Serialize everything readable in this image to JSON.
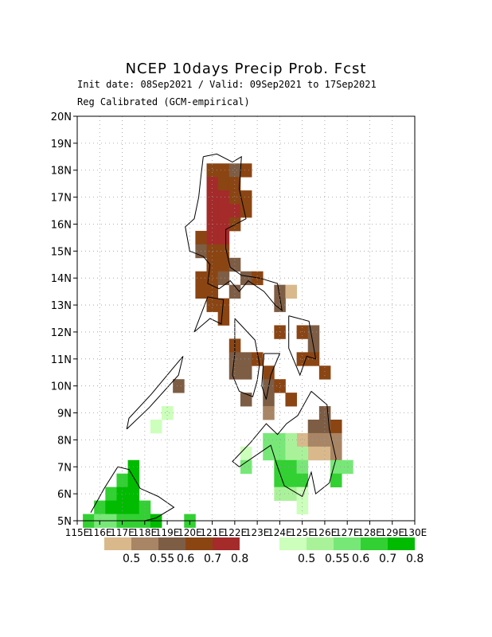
{
  "title": "NCEP 10days Precip Prob. Fcst",
  "subtitle1": "Init date: 08Sep2021 / Valid: 09Sep2021 to 17Sep2021",
  "subtitle2": "Reg Calibrated (GCM-empirical)",
  "lat_ticks": [
    "20N",
    "19N",
    "18N",
    "17N",
    "16N",
    "15N",
    "14N",
    "13N",
    "12N",
    "11N",
    "10N",
    "9N",
    "8N",
    "7N",
    "6N",
    "5N"
  ],
  "lon_ticks": [
    "115E",
    "116E",
    "117E",
    "118E",
    "119E",
    "120E",
    "121E",
    "122E",
    "123E",
    "124E",
    "125E",
    "126E",
    "127E",
    "128E",
    "129E",
    "130E"
  ],
  "extent": {
    "lon": [
      115,
      130
    ],
    "lat": [
      5,
      20
    ]
  },
  "grid": "dotted",
  "dry_legend": {
    "colors": [
      "#d9b98c",
      "#a88565",
      "#7e5d45",
      "#8b4513",
      "#a52a2a"
    ],
    "labels": [
      "0.5",
      "0.55",
      "0.6",
      "0.7",
      "0.8"
    ]
  },
  "wet_legend": {
    "colors": [
      "#ccffbb",
      "#aaf29a",
      "#77e877",
      "#33d033",
      "#00bb00"
    ],
    "labels": [
      "0.5",
      "0.55",
      "0.6",
      "0.7",
      "0.8"
    ]
  },
  "dry_cells": [
    {
      "lon": 121.0,
      "lat": 18.0,
      "c": 3
    },
    {
      "lon": 121.5,
      "lat": 18.0,
      "c": 3
    },
    {
      "lon": 122.0,
      "lat": 18.0,
      "c": 2
    },
    {
      "lon": 122.5,
      "lat": 18.0,
      "c": 3
    },
    {
      "lon": 121.0,
      "lat": 17.5,
      "c": 4
    },
    {
      "lon": 121.5,
      "lat": 17.5,
      "c": 3
    },
    {
      "lon": 122.0,
      "lat": 17.5,
      "c": 3
    },
    {
      "lon": 121.0,
      "lat": 17.0,
      "c": 4
    },
    {
      "lon": 121.5,
      "lat": 17.0,
      "c": 4
    },
    {
      "lon": 122.0,
      "lat": 17.0,
      "c": 3
    },
    {
      "lon": 122.5,
      "lat": 17.0,
      "c": 3
    },
    {
      "lon": 121.0,
      "lat": 16.5,
      "c": 4
    },
    {
      "lon": 121.5,
      "lat": 16.5,
      "c": 4
    },
    {
      "lon": 122.0,
      "lat": 16.5,
      "c": 4
    },
    {
      "lon": 122.5,
      "lat": 16.5,
      "c": 3
    },
    {
      "lon": 121.0,
      "lat": 16.0,
      "c": 4
    },
    {
      "lon": 121.5,
      "lat": 16.0,
      "c": 4
    },
    {
      "lon": 122.0,
      "lat": 16.0,
      "c": 3
    },
    {
      "lon": 120.5,
      "lat": 15.5,
      "c": 3
    },
    {
      "lon": 121.0,
      "lat": 15.5,
      "c": 4
    },
    {
      "lon": 121.5,
      "lat": 15.5,
      "c": 4
    },
    {
      "lon": 120.5,
      "lat": 15.0,
      "c": 2
    },
    {
      "lon": 121.0,
      "lat": 15.0,
      "c": 3
    },
    {
      "lon": 121.5,
      "lat": 15.0,
      "c": 3
    },
    {
      "lon": 121.0,
      "lat": 14.5,
      "c": 3
    },
    {
      "lon": 121.5,
      "lat": 14.5,
      "c": 3
    },
    {
      "lon": 122.0,
      "lat": 14.5,
      "c": 2
    },
    {
      "lon": 120.5,
      "lat": 14.0,
      "c": 3
    },
    {
      "lon": 121.0,
      "lat": 14.0,
      "c": 3
    },
    {
      "lon": 121.5,
      "lat": 14.0,
      "c": 2
    },
    {
      "lon": 122.5,
      "lat": 14.0,
      "c": 2
    },
    {
      "lon": 123.0,
      "lat": 14.0,
      "c": 3
    },
    {
      "lon": 120.5,
      "lat": 13.5,
      "c": 3
    },
    {
      "lon": 121.0,
      "lat": 13.5,
      "c": 3
    },
    {
      "lon": 122.0,
      "lat": 13.5,
      "c": 2
    },
    {
      "lon": 124.0,
      "lat": 13.5,
      "c": 2
    },
    {
      "lon": 124.5,
      "lat": 13.5,
      "c": 0
    },
    {
      "lon": 121.0,
      "lat": 13.0,
      "c": 3
    },
    {
      "lon": 121.5,
      "lat": 13.0,
      "c": 3
    },
    {
      "lon": 124.0,
      "lat": 13.0,
      "c": 2
    },
    {
      "lon": 121.5,
      "lat": 12.5,
      "c": 3
    },
    {
      "lon": 124.0,
      "lat": 12.0,
      "c": 3
    },
    {
      "lon": 125.0,
      "lat": 12.0,
      "c": 3
    },
    {
      "lon": 125.5,
      "lat": 12.0,
      "c": 2
    },
    {
      "lon": 122.0,
      "lat": 11.5,
      "c": 3
    },
    {
      "lon": 125.5,
      "lat": 11.5,
      "c": 2
    },
    {
      "lon": 122.0,
      "lat": 11.0,
      "c": 2
    },
    {
      "lon": 122.5,
      "lat": 11.0,
      "c": 2
    },
    {
      "lon": 123.0,
      "lat": 11.0,
      "c": 3
    },
    {
      "lon": 125.0,
      "lat": 11.0,
      "c": 3
    },
    {
      "lon": 125.5,
      "lat": 11.0,
      "c": 3
    },
    {
      "lon": 122.0,
      "lat": 10.5,
      "c": 2
    },
    {
      "lon": 122.5,
      "lat": 10.5,
      "c": 2
    },
    {
      "lon": 123.5,
      "lat": 10.5,
      "c": 3
    },
    {
      "lon": 126.0,
      "lat": 10.5,
      "c": 3
    },
    {
      "lon": 119.5,
      "lat": 10.0,
      "c": 2
    },
    {
      "lon": 123.5,
      "lat": 10.0,
      "c": 2
    },
    {
      "lon": 124.0,
      "lat": 10.0,
      "c": 3
    },
    {
      "lon": 122.5,
      "lat": 9.5,
      "c": 2
    },
    {
      "lon": 123.5,
      "lat": 9.5,
      "c": 2
    },
    {
      "lon": 124.5,
      "lat": 9.5,
      "c": 3
    },
    {
      "lon": 123.5,
      "lat": 9.0,
      "c": 1
    },
    {
      "lon": 126.0,
      "lat": 9.0,
      "c": 2
    },
    {
      "lon": 125.5,
      "lat": 8.5,
      "c": 2
    },
    {
      "lon": 126.0,
      "lat": 8.5,
      "c": 2
    },
    {
      "lon": 126.5,
      "lat": 8.5,
      "c": 3
    },
    {
      "lon": 125.0,
      "lat": 8.0,
      "c": 0
    },
    {
      "lon": 125.5,
      "lat": 8.0,
      "c": 1
    },
    {
      "lon": 126.0,
      "lat": 8.0,
      "c": 1
    },
    {
      "lon": 126.5,
      "lat": 8.0,
      "c": 1
    },
    {
      "lon": 125.5,
      "lat": 7.5,
      "c": 0
    },
    {
      "lon": 126.0,
      "lat": 7.5,
      "c": 0
    },
    {
      "lon": 126.5,
      "lat": 7.5,
      "c": 1
    }
  ],
  "wet_cells": [
    {
      "lon": 119.0,
      "lat": 9.0,
      "c": 0
    },
    {
      "lon": 118.5,
      "lat": 8.5,
      "c": 0
    },
    {
      "lon": 123.5,
      "lat": 8.0,
      "c": 2
    },
    {
      "lon": 124.0,
      "lat": 8.0,
      "c": 2
    },
    {
      "lon": 124.5,
      "lat": 8.0,
      "c": 1
    },
    {
      "lon": 122.5,
      "lat": 7.5,
      "c": 0
    },
    {
      "lon": 123.5,
      "lat": 7.5,
      "c": 2
    },
    {
      "lon": 124.0,
      "lat": 7.5,
      "c": 2
    },
    {
      "lon": 124.5,
      "lat": 7.5,
      "c": 1
    },
    {
      "lon": 125.0,
      "lat": 7.5,
      "c": 1
    },
    {
      "lon": 117.5,
      "lat": 7.0,
      "c": 4
    },
    {
      "lon": 122.5,
      "lat": 7.0,
      "c": 2
    },
    {
      "lon": 124.0,
      "lat": 7.0,
      "c": 3
    },
    {
      "lon": 124.5,
      "lat": 7.0,
      "c": 3
    },
    {
      "lon": 125.0,
      "lat": 7.0,
      "c": 2
    },
    {
      "lon": 126.5,
      "lat": 7.0,
      "c": 2
    },
    {
      "lon": 127.0,
      "lat": 7.0,
      "c": 2
    },
    {
      "lon": 117.0,
      "lat": 6.5,
      "c": 3
    },
    {
      "lon": 117.5,
      "lat": 6.5,
      "c": 4
    },
    {
      "lon": 124.0,
      "lat": 6.5,
      "c": 3
    },
    {
      "lon": 124.5,
      "lat": 6.5,
      "c": 3
    },
    {
      "lon": 125.0,
      "lat": 6.5,
      "c": 3
    },
    {
      "lon": 126.5,
      "lat": 6.5,
      "c": 3
    },
    {
      "lon": 116.5,
      "lat": 6.0,
      "c": 3
    },
    {
      "lon": 117.0,
      "lat": 6.0,
      "c": 4
    },
    {
      "lon": 117.5,
      "lat": 6.0,
      "c": 4
    },
    {
      "lon": 124.0,
      "lat": 6.0,
      "c": 1
    },
    {
      "lon": 124.5,
      "lat": 6.0,
      "c": 1
    },
    {
      "lon": 125.0,
      "lat": 6.0,
      "c": 0
    },
    {
      "lon": 116.0,
      "lat": 5.5,
      "c": 3
    },
    {
      "lon": 116.5,
      "lat": 5.5,
      "c": 4
    },
    {
      "lon": 117.0,
      "lat": 5.5,
      "c": 4
    },
    {
      "lon": 117.5,
      "lat": 5.5,
      "c": 4
    },
    {
      "lon": 118.0,
      "lat": 5.5,
      "c": 3
    },
    {
      "lon": 125.0,
      "lat": 5.5,
      "c": 0
    },
    {
      "lon": 115.5,
      "lat": 5.0,
      "c": 3
    },
    {
      "lon": 116.0,
      "lat": 5.0,
      "c": 2
    },
    {
      "lon": 116.5,
      "lat": 5.0,
      "c": 2
    },
    {
      "lon": 117.0,
      "lat": 5.0,
      "c": 3
    },
    {
      "lon": 117.5,
      "lat": 5.0,
      "c": 3
    },
    {
      "lon": 118.0,
      "lat": 5.0,
      "c": 3
    },
    {
      "lon": 118.5,
      "lat": 5.0,
      "c": 4
    },
    {
      "lon": 120.0,
      "lat": 5.0,
      "c": 3
    }
  ],
  "coastlines": [
    [
      [
        120.6,
        18.5
      ],
      [
        121.2,
        18.6
      ],
      [
        121.9,
        18.3
      ],
      [
        122.3,
        18.5
      ],
      [
        122.2,
        17.3
      ],
      [
        122.5,
        16.2
      ],
      [
        121.6,
        15.8
      ],
      [
        121.6,
        15.1
      ],
      [
        121.8,
        14.4
      ],
      [
        122.3,
        14.1
      ],
      [
        123.1,
        14.0
      ],
      [
        123.9,
        13.8
      ],
      [
        124.1,
        12.8
      ],
      [
        123.8,
        13.0
      ],
      [
        123.3,
        13.5
      ],
      [
        122.6,
        13.9
      ],
      [
        122.2,
        13.5
      ],
      [
        121.8,
        13.9
      ],
      [
        121.3,
        13.6
      ],
      [
        120.8,
        13.8
      ],
      [
        120.9,
        14.5
      ],
      [
        120.6,
        14.8
      ],
      [
        120.0,
        15.0
      ],
      [
        119.8,
        15.9
      ],
      [
        120.2,
        16.2
      ],
      [
        120.4,
        17.0
      ],
      [
        120.5,
        17.8
      ],
      [
        120.6,
        18.5
      ]
    ],
    [
      [
        120.2,
        12.0
      ],
      [
        120.8,
        13.3
      ],
      [
        121.5,
        13.2
      ],
      [
        121.4,
        12.3
      ],
      [
        120.9,
        12.5
      ],
      [
        120.2,
        12.0
      ]
    ],
    [
      [
        122.0,
        12.5
      ],
      [
        122.9,
        11.7
      ],
      [
        123.1,
        10.8
      ],
      [
        123.0,
        10.2
      ],
      [
        122.8,
        9.6
      ],
      [
        122.2,
        9.8
      ],
      [
        121.9,
        10.4
      ],
      [
        122.0,
        11.2
      ],
      [
        122.0,
        12.5
      ]
    ],
    [
      [
        123.3,
        11.2
      ],
      [
        124.0,
        11.2
      ],
      [
        123.6,
        10.4
      ],
      [
        123.4,
        9.5
      ],
      [
        123.2,
        10.0
      ],
      [
        123.3,
        11.2
      ]
    ],
    [
      [
        124.4,
        12.6
      ],
      [
        125.3,
        12.4
      ],
      [
        125.6,
        11.0
      ],
      [
        125.2,
        11.1
      ],
      [
        124.9,
        10.4
      ],
      [
        124.4,
        11.4
      ],
      [
        124.4,
        12.6
      ]
    ],
    [
      [
        125.4,
        9.8
      ],
      [
        126.1,
        9.3
      ],
      [
        126.2,
        8.4
      ],
      [
        126.5,
        7.3
      ],
      [
        126.2,
        6.4
      ],
      [
        125.6,
        6.0
      ],
      [
        125.4,
        6.8
      ],
      [
        125.0,
        5.9
      ],
      [
        124.2,
        6.3
      ],
      [
        123.9,
        7.0
      ],
      [
        123.6,
        7.8
      ],
      [
        122.2,
        7.0
      ],
      [
        121.9,
        7.2
      ],
      [
        122.7,
        7.9
      ],
      [
        123.4,
        8.6
      ],
      [
        123.9,
        8.2
      ],
      [
        124.3,
        8.6
      ],
      [
        124.8,
        8.9
      ],
      [
        125.4,
        9.8
      ]
    ],
    [
      [
        117.2,
        8.4
      ],
      [
        118.2,
        9.2
      ],
      [
        119.5,
        10.4
      ],
      [
        119.7,
        11.1
      ],
      [
        119.2,
        10.6
      ],
      [
        118.3,
        9.7
      ],
      [
        117.3,
        8.8
      ],
      [
        117.2,
        8.4
      ]
    ],
    [
      [
        115.6,
        5.3
      ],
      [
        116.2,
        6.2
      ],
      [
        116.8,
        7.0
      ],
      [
        117.3,
        6.9
      ],
      [
        117.8,
        6.2
      ],
      [
        118.6,
        5.9
      ],
      [
        119.3,
        5.5
      ],
      [
        118.5,
        5.1
      ],
      [
        118.0,
        5.0
      ]
    ]
  ]
}
